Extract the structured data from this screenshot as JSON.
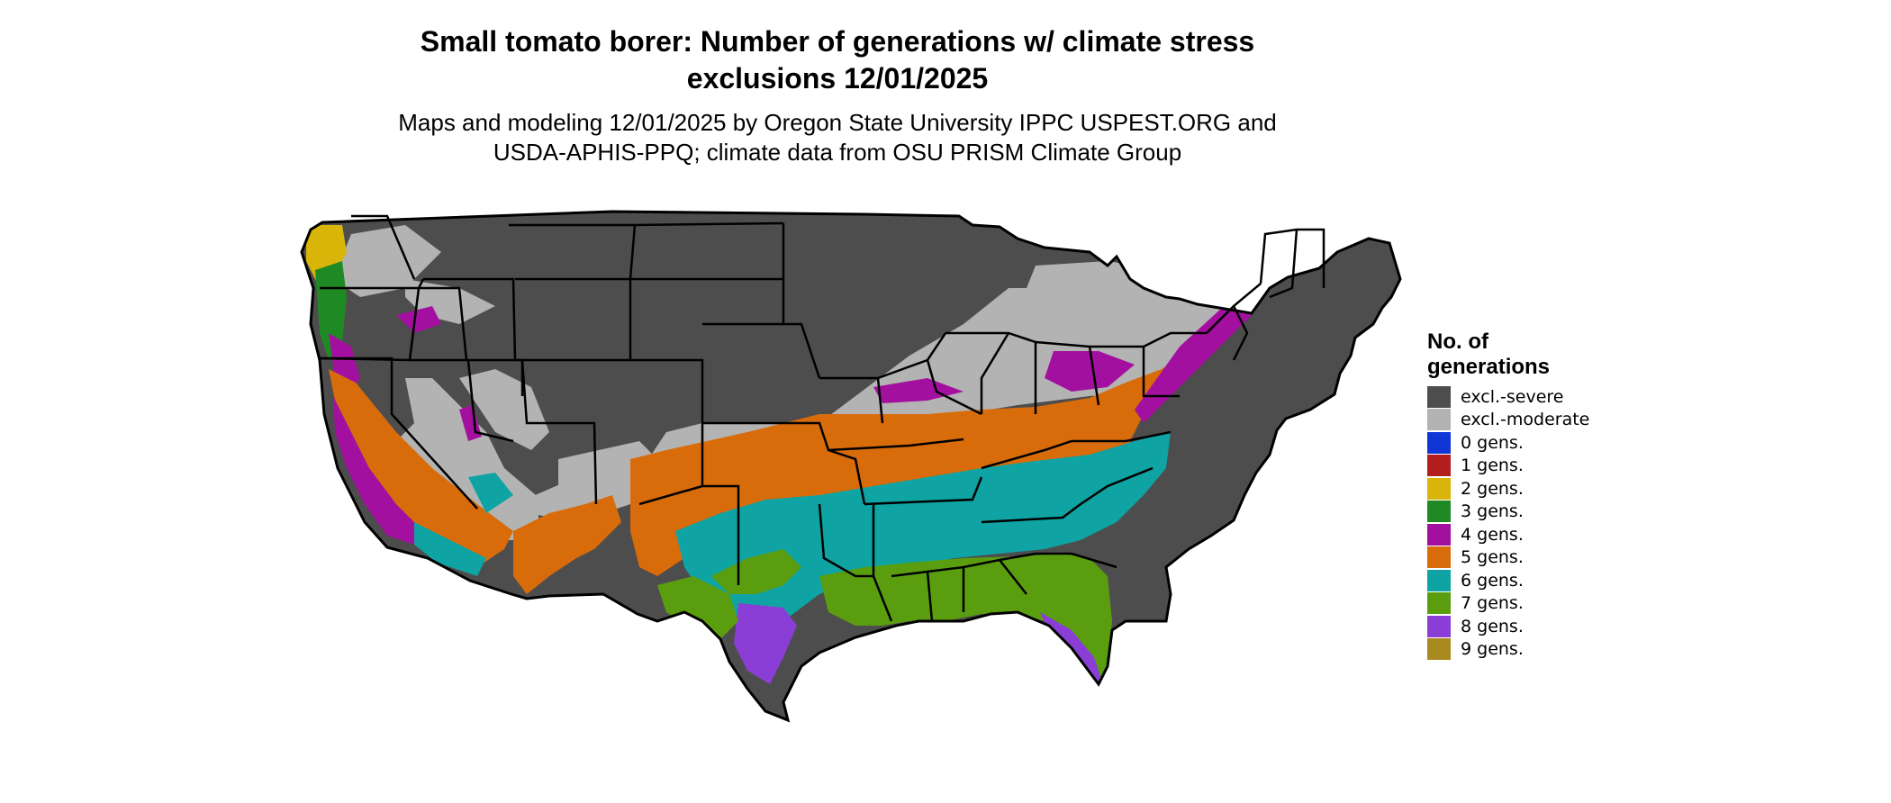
{
  "title_line1": "Small tomato borer: Number of generations w/ climate stress",
  "title_line2": "exclusions 12/01/2025",
  "subtitle_line1": "Maps and modeling 12/01/2025 by Oregon State University IPPC USPEST.ORG and",
  "subtitle_line2": "USDA-APHIS-PPQ; climate data from OSU PRISM Climate Group",
  "legend": {
    "title": "No. of generations",
    "items": [
      {
        "label": "excl.-severe",
        "color": "#4d4d4d"
      },
      {
        "label": "excl.-moderate",
        "color": "#b3b3b3"
      },
      {
        "label": "0 gens.",
        "color": "#1036d6"
      },
      {
        "label": "1 gens.",
        "color": "#b21e1e"
      },
      {
        "label": "2 gens.",
        "color": "#d9b50a"
      },
      {
        "label": "3 gens.",
        "color": "#1f8a24"
      },
      {
        "label": "4 gens.",
        "color": "#a3109f"
      },
      {
        "label": "5 gens.",
        "color": "#d96c0a"
      },
      {
        "label": "6 gens.",
        "color": "#0fa3a3"
      },
      {
        "label": "7 gens.",
        "color": "#5a9e10"
      },
      {
        "label": "8 gens.",
        "color": "#8a3ed6"
      },
      {
        "label": "9 gens.",
        "color": "#a88a20"
      }
    ]
  }
}
